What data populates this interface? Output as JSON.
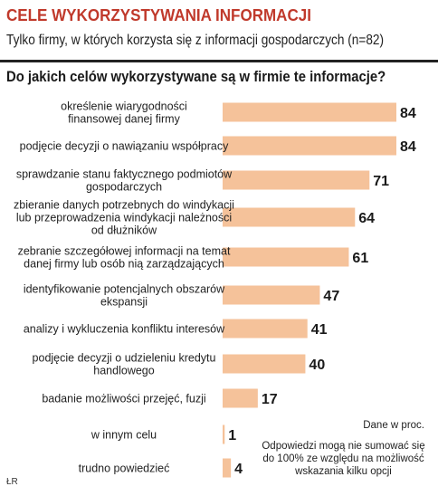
{
  "header": {
    "title": "CELE WYKORZYSTYWANIA INFORMACJI",
    "subtitle": "Tylko firmy, w których korzysta się z informacji gospodarczych (n=82)",
    "question": "Do jakich celów wykorzystywane są w firmie te informacje?"
  },
  "notes": {
    "units": "Dane w proc.",
    "sum": "Odpowiedzi mogą nie sumować się do 100% ze względu na możliwość wskazania kilku opcji"
  },
  "source": "ŁR",
  "colors": {
    "bar": "#f5c29a",
    "title": "#c0392b"
  },
  "chart_data": {
    "type": "bar",
    "orientation": "horizontal",
    "unit": "%",
    "xlim": [
      0,
      84
    ],
    "categories": [
      [
        "określenie wiarygodności",
        "finansowej danej firmy"
      ],
      [
        "podjęcie decyzji o nawiązaniu współpracy"
      ],
      [
        "sprawdzanie stanu faktycznego podmiotów",
        "gospodarczych"
      ],
      [
        "zbieranie danych potrzebnych do windykacji",
        "lub przeprowadzenia windykacji należności",
        "od dłużników"
      ],
      [
        "zebranie szczegółowej informacji na temat",
        "danej firmy lub osób nią zarządzających"
      ],
      [
        "identyfikowanie potencjalnych obszarów",
        "ekspansji"
      ],
      [
        "analizy i wykluczenia konfliktu interesów"
      ],
      [
        "podjęcie decyzji o udzieleniu kredytu",
        "handlowego"
      ],
      [
        "badanie możliwości przejęć, fuzji"
      ],
      [
        "w innym celu"
      ],
      [
        "trudno powiedzieć"
      ]
    ],
    "values": [
      84,
      84,
      71,
      64,
      61,
      47,
      41,
      40,
      17,
      1,
      4
    ]
  }
}
